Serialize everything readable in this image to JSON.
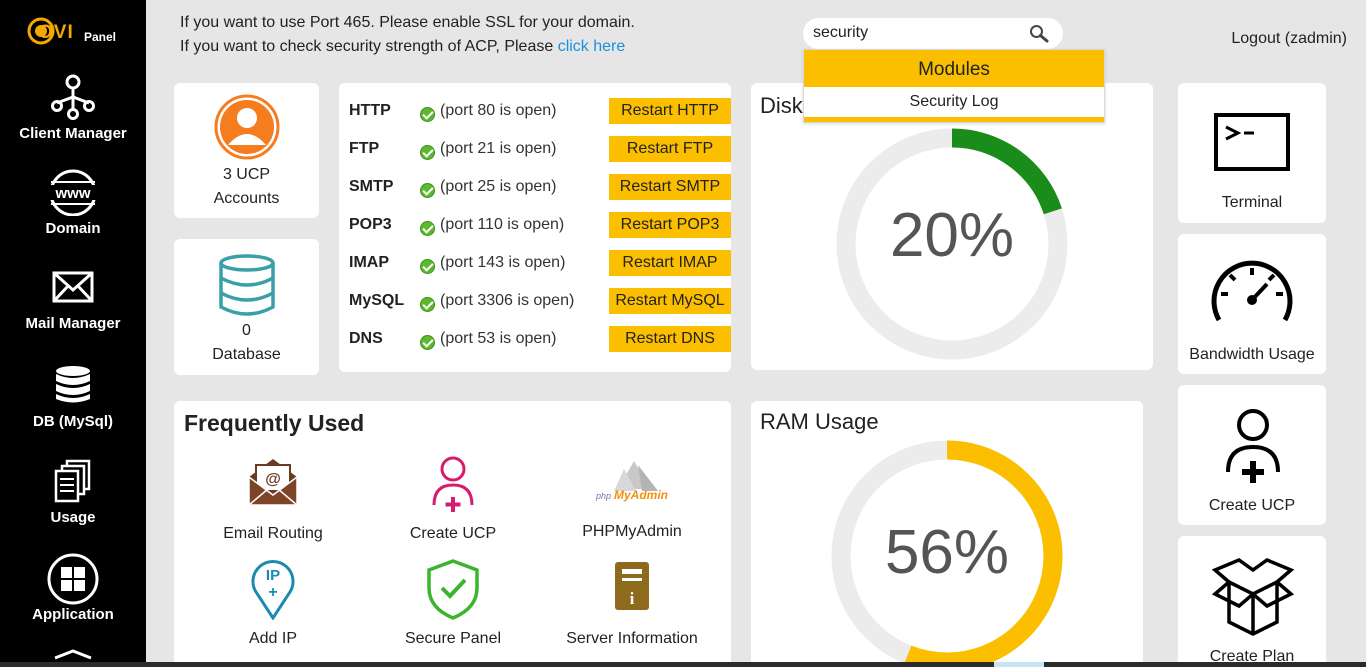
{
  "brand": {
    "logo_main": "OVI",
    "logo_sub": "Panel"
  },
  "sidebar": {
    "items": [
      {
        "label": "Client Manager",
        "icon": "client-manager-icon"
      },
      {
        "label": "Domain",
        "icon": "www-icon"
      },
      {
        "label": "Mail Manager",
        "icon": "envelope-icon"
      },
      {
        "label": "DB (MySql)",
        "icon": "database-icon"
      },
      {
        "label": "Usage",
        "icon": "documents-icon"
      },
      {
        "label": "Application",
        "icon": "grid-icon"
      }
    ]
  },
  "header": {
    "notice_line1": "If you want to use Port 465. Please enable SSL for your domain.",
    "notice_line2": "If you want to check security strength of ACP, Please",
    "notice_link": "click here",
    "logout": "Logout (zadmin)"
  },
  "search": {
    "value": "security",
    "dropdown_heading": "Modules",
    "dropdown_items": [
      "Security Log"
    ]
  },
  "accounts": {
    "count": "3 UCP",
    "label": "Accounts"
  },
  "database": {
    "count": "0",
    "label": "Database"
  },
  "services": [
    {
      "name": "HTTP",
      "status": "(port 80 is open)",
      "button": "Restart HTTP"
    },
    {
      "name": "FTP",
      "status": "(port 21 is open)",
      "button": "Restart FTP"
    },
    {
      "name": "SMTP",
      "status": "(port 25 is open)",
      "button": "Restart SMTP"
    },
    {
      "name": "POP3",
      "status": "(port 110 is open)",
      "button": "Restart POP3"
    },
    {
      "name": "IMAP",
      "status": "(port 143 is open)",
      "button": "Restart IMAP"
    },
    {
      "name": "MySQL",
      "status": "(port 3306 is open)",
      "button": "Restart MySQL"
    },
    {
      "name": "DNS",
      "status": "(port 53 is open)",
      "button": "Restart DNS"
    }
  ],
  "disk": {
    "title": "Disk",
    "percent_text": "20%",
    "fraction": 0.2,
    "color": "#1a8c1a"
  },
  "ram": {
    "title": "RAM Usage",
    "percent_text": "56%",
    "fraction": 0.56,
    "color": "#fbbf00"
  },
  "frequently_used": {
    "title": "Frequently Used",
    "items": [
      {
        "label": "Email Routing",
        "icon": "email-routing-icon"
      },
      {
        "label": "Create UCP",
        "icon": "create-user-icon"
      },
      {
        "label": "PHPMyAdmin",
        "icon": "phpmyadmin-logo-icon"
      },
      {
        "label": "Add IP",
        "icon": "ip-pin-icon"
      },
      {
        "label": "Secure Panel",
        "icon": "shield-check-icon"
      },
      {
        "label": "Server Information",
        "icon": "server-info-icon"
      }
    ]
  },
  "quick_actions": [
    {
      "label": "Terminal",
      "icon": "terminal-icon"
    },
    {
      "label": "Bandwidth Usage",
      "icon": "speedometer-icon"
    },
    {
      "label": "Create UCP",
      "icon": "add-user-icon"
    },
    {
      "label": "Create Plan",
      "icon": "box-icon"
    }
  ],
  "colors": {
    "accent": "#fbbf00",
    "link": "#1a8fe0",
    "sidebar": "#000000"
  }
}
